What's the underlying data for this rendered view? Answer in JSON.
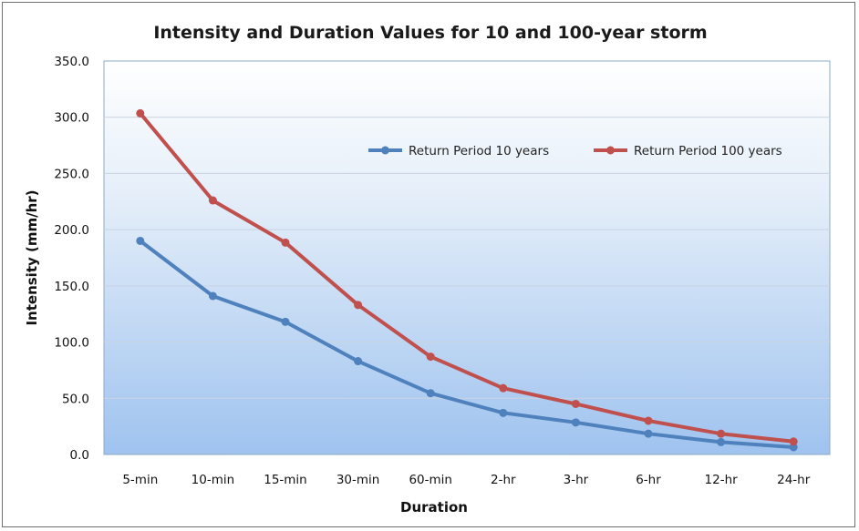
{
  "chart_data": {
    "type": "line",
    "title": "Intensity and Duration Values for 10 and 100-year storm",
    "xlabel": "Duration",
    "ylabel": "Intensity (mm/hr)",
    "categories": [
      "5-min",
      "10-min",
      "15-min",
      "30-min",
      "60-min",
      "2-hr",
      "3-hr",
      "6-hr",
      "12-hr",
      "24-hr"
    ],
    "ylim": [
      0,
      350
    ],
    "ytick_step": 50,
    "ytick_labels": [
      "0.0",
      "50.0",
      "100.0",
      "150.0",
      "200.0",
      "250.0",
      "300.0",
      "350.0"
    ],
    "grid": true,
    "legend_position": "top-right",
    "series": [
      {
        "name": "Return Period 10 years",
        "color": "#4f81bd",
        "values": [
          190,
          141,
          118,
          83,
          54.5,
          37,
          28.5,
          18.5,
          11,
          6.5
        ]
      },
      {
        "name": "Return Period 100 years",
        "color": "#c0504d",
        "values": [
          303.5,
          226,
          188.5,
          133,
          87,
          59,
          45,
          30,
          18.5,
          11.5
        ]
      }
    ]
  }
}
